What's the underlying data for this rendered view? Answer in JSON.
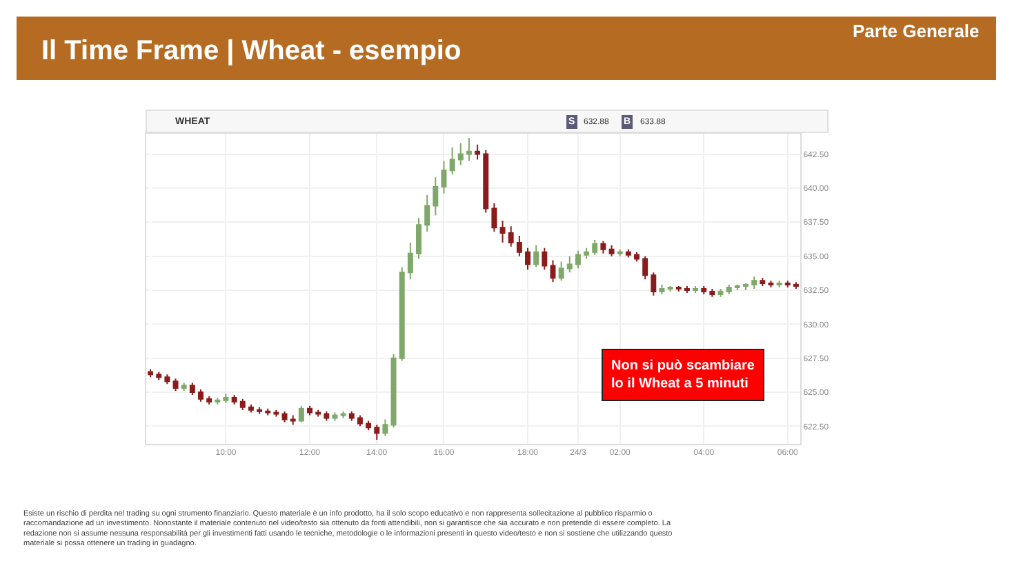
{
  "chart_data": {
    "type": "candlestick",
    "title": "Il Time Frame | Wheat - esempio",
    "subtitle": "Parte Generale",
    "categories": [
      null,
      null,
      null,
      null,
      null,
      null,
      null,
      null,
      null,
      "10:00",
      null,
      null,
      null,
      null,
      null,
      null,
      null,
      null,
      null,
      "12:00",
      null,
      null,
      null,
      null,
      null,
      null,
      null,
      "14:00",
      null,
      null,
      null,
      null,
      null,
      null,
      null,
      "16:00",
      null,
      null,
      null,
      null,
      null,
      null,
      null,
      null,
      null,
      "18:00",
      null,
      null,
      null,
      null,
      null,
      "24/3",
      null,
      null,
      null,
      null,
      "02:00",
      null,
      null,
      null,
      null,
      null,
      null,
      null,
      null,
      null,
      "04:00",
      null,
      null,
      null,
      null,
      null,
      null,
      null,
      null,
      null,
      "06:00",
      null
    ],
    "ohlc": [
      [
        626.5,
        626.7,
        626.1,
        626.3
      ],
      [
        626.3,
        626.5,
        625.9,
        626.1
      ],
      [
        626.1,
        626.3,
        625.6,
        625.8
      ],
      [
        625.8,
        626.0,
        625.1,
        625.3
      ],
      [
        625.3,
        625.7,
        625.1,
        625.5
      ],
      [
        625.5,
        625.7,
        624.8,
        625.0
      ],
      [
        625.0,
        625.2,
        624.3,
        624.5
      ],
      [
        624.5,
        624.7,
        624.1,
        624.3
      ],
      [
        624.3,
        624.6,
        624.1,
        624.4
      ],
      [
        624.4,
        624.9,
        624.2,
        624.6
      ],
      [
        624.6,
        624.8,
        624.1,
        624.3
      ],
      [
        624.3,
        624.5,
        623.7,
        623.9
      ],
      [
        623.9,
        624.1,
        623.5,
        623.7
      ],
      [
        623.7,
        623.9,
        623.4,
        623.6
      ],
      [
        623.6,
        623.8,
        623.3,
        623.5
      ],
      [
        623.5,
        623.7,
        623.2,
        623.4
      ],
      [
        623.4,
        623.6,
        622.8,
        623.0
      ],
      [
        623.0,
        623.3,
        622.6,
        622.9
      ],
      [
        622.9,
        624.0,
        622.8,
        623.8
      ],
      [
        623.8,
        624.0,
        623.3,
        623.5
      ],
      [
        623.5,
        623.7,
        623.2,
        623.4
      ],
      [
        623.4,
        623.6,
        622.9,
        623.1
      ],
      [
        623.1,
        623.5,
        622.9,
        623.3
      ],
      [
        623.3,
        623.6,
        623.1,
        623.4
      ],
      [
        623.4,
        623.6,
        622.9,
        623.1
      ],
      [
        623.1,
        623.3,
        622.5,
        622.7
      ],
      [
        622.7,
        622.9,
        622.2,
        622.4
      ],
      [
        622.4,
        622.6,
        621.5,
        622.0
      ],
      [
        622.0,
        623.0,
        621.8,
        622.6
      ],
      [
        622.6,
        627.8,
        622.4,
        627.5
      ],
      [
        627.5,
        634.2,
        627.3,
        633.8
      ],
      [
        633.8,
        636.0,
        633.3,
        635.2
      ],
      [
        635.2,
        637.8,
        634.8,
        637.3
      ],
      [
        637.3,
        639.5,
        636.8,
        638.7
      ],
      [
        638.7,
        640.8,
        638.0,
        640.1
      ],
      [
        640.1,
        642.0,
        639.6,
        641.3
      ],
      [
        641.3,
        643.0,
        641.0,
        642.1
      ],
      [
        642.1,
        643.3,
        641.7,
        642.5
      ],
      [
        642.5,
        643.7,
        642.0,
        642.7
      ],
      [
        642.7,
        643.2,
        642.1,
        642.5
      ],
      [
        642.5,
        642.8,
        638.2,
        638.5
      ],
      [
        638.5,
        638.9,
        636.8,
        637.1
      ],
      [
        637.1,
        637.6,
        636.0,
        636.7
      ],
      [
        636.7,
        637.2,
        635.7,
        636.0
      ],
      [
        636.0,
        636.5,
        635.0,
        635.3
      ],
      [
        635.3,
        635.6,
        634.0,
        634.4
      ],
      [
        634.4,
        635.8,
        634.2,
        635.3
      ],
      [
        635.3,
        635.6,
        634.0,
        634.3
      ],
      [
        634.3,
        634.7,
        633.1,
        633.4
      ],
      [
        633.4,
        634.6,
        633.2,
        634.1
      ],
      [
        634.1,
        635.0,
        633.8,
        634.4
      ],
      [
        634.4,
        635.4,
        634.1,
        635.1
      ],
      [
        635.1,
        635.6,
        634.8,
        635.3
      ],
      [
        635.3,
        636.2,
        635.1,
        635.9
      ],
      [
        635.9,
        636.1,
        635.2,
        635.5
      ],
      [
        635.5,
        635.8,
        635.0,
        635.2
      ],
      [
        635.2,
        635.5,
        635.0,
        635.3
      ],
      [
        635.3,
        635.5,
        634.9,
        635.1
      ],
      [
        635.1,
        635.3,
        634.6,
        634.8
      ],
      [
        634.8,
        635.0,
        633.3,
        633.6
      ],
      [
        633.6,
        633.8,
        632.1,
        632.4
      ],
      [
        632.4,
        632.9,
        632.2,
        632.6
      ],
      [
        632.6,
        632.8,
        632.4,
        632.7
      ],
      [
        632.7,
        632.8,
        632.4,
        632.6
      ],
      [
        632.6,
        632.8,
        632.3,
        632.5
      ],
      [
        632.5,
        632.8,
        632.3,
        632.6
      ],
      [
        632.6,
        632.8,
        632.2,
        632.4
      ],
      [
        632.4,
        632.6,
        632.0,
        632.2
      ],
      [
        632.2,
        632.6,
        632.0,
        632.4
      ],
      [
        632.4,
        632.9,
        632.2,
        632.7
      ],
      [
        632.7,
        632.9,
        632.5,
        632.8
      ],
      [
        632.8,
        633.0,
        632.5,
        632.9
      ],
      [
        632.9,
        633.5,
        632.6,
        633.2
      ],
      [
        633.2,
        633.4,
        632.8,
        633.0
      ],
      [
        633.0,
        633.2,
        632.7,
        632.9
      ],
      [
        632.9,
        633.2,
        632.7,
        633.0
      ],
      [
        633.0,
        633.2,
        632.7,
        632.9
      ],
      [
        632.9,
        633.1,
        632.6,
        632.8
      ]
    ],
    "colors": [
      "#8b1c1c",
      "#8b1c1c",
      "#8b1c1c",
      "#8b1c1c",
      "#7fa86a",
      "#8b1c1c",
      "#8b1c1c",
      "#8b1c1c",
      "#7fa86a",
      "#7fa86a",
      "#8b1c1c",
      "#8b1c1c",
      "#8b1c1c",
      "#8b1c1c",
      "#8b1c1c",
      "#8b1c1c",
      "#8b1c1c",
      "#8b1c1c",
      "#7fa86a",
      "#8b1c1c",
      "#8b1c1c",
      "#8b1c1c",
      "#7fa86a",
      "#7fa86a",
      "#8b1c1c",
      "#8b1c1c",
      "#8b1c1c",
      "#8b1c1c",
      "#7fa86a",
      "#7fa86a",
      "#7fa86a",
      "#7fa86a",
      "#7fa86a",
      "#7fa86a",
      "#7fa86a",
      "#7fa86a",
      "#7fa86a",
      "#7fa86a",
      "#7fa86a",
      "#8b1c1c",
      "#8b1c1c",
      "#8b1c1c",
      "#8b1c1c",
      "#8b1c1c",
      "#8b1c1c",
      "#8b1c1c",
      "#7fa86a",
      "#8b1c1c",
      "#8b1c1c",
      "#7fa86a",
      "#7fa86a",
      "#7fa86a",
      "#7fa86a",
      "#7fa86a",
      "#8b1c1c",
      "#8b1c1c",
      "#7fa86a",
      "#8b1c1c",
      "#8b1c1c",
      "#8b1c1c",
      "#8b1c1c",
      "#7fa86a",
      "#7fa86a",
      "#8b1c1c",
      "#8b1c1c",
      "#7fa86a",
      "#8b1c1c",
      "#8b1c1c",
      "#7fa86a",
      "#7fa86a",
      "#7fa86a",
      "#7fa86a",
      "#7fa86a",
      "#8b1c1c",
      "#8b1c1c",
      "#7fa86a",
      "#8b1c1c",
      "#8b1c1c"
    ],
    "ylim": [
      621.2,
      644.0
    ],
    "yticks": [
      {
        "value": 622.5,
        "label": "622.50"
      },
      {
        "value": 625,
        "label": "625.00"
      },
      {
        "value": 627.5,
        "label": "627.50"
      },
      {
        "value": 630,
        "label": "630.00"
      },
      {
        "value": 632.5,
        "label": "632.50"
      },
      {
        "value": 635,
        "label": "635.00"
      },
      {
        "value": 637.5,
        "label": "637.50"
      },
      {
        "value": 640,
        "label": "640.00"
      },
      {
        "value": 642.5,
        "label": "642.50"
      }
    ],
    "grid": true,
    "annotations": [
      "WHEAT",
      "S",
      "632.88",
      "B",
      "633.88",
      "Non si può scambiare\nlo il Wheat a 5 minuti",
      "Esiste un rischio di perdita nel trading su ogni strumento finanziario. Questo materiale è un info prodotto, ha il solo scopo educativo e non rappresenta sollecitazione al pubblico risparmio o\nraccomandazione ad un investimento. Nonostante il materiale contenuto nel video/testo sia ottenuto da fonti attendibili, non si garantisce che sia accurato e non pretende di essere completo. La\nredazione non si assume nessuna responsabilità per gli investimenti fatti usando le tecniche, metodologie o le informazioni presenti in questo video/testo e non si sostiene che utilizzando questo\nmateriale si possa ottenere un trading in guadagno."
    ]
  }
}
